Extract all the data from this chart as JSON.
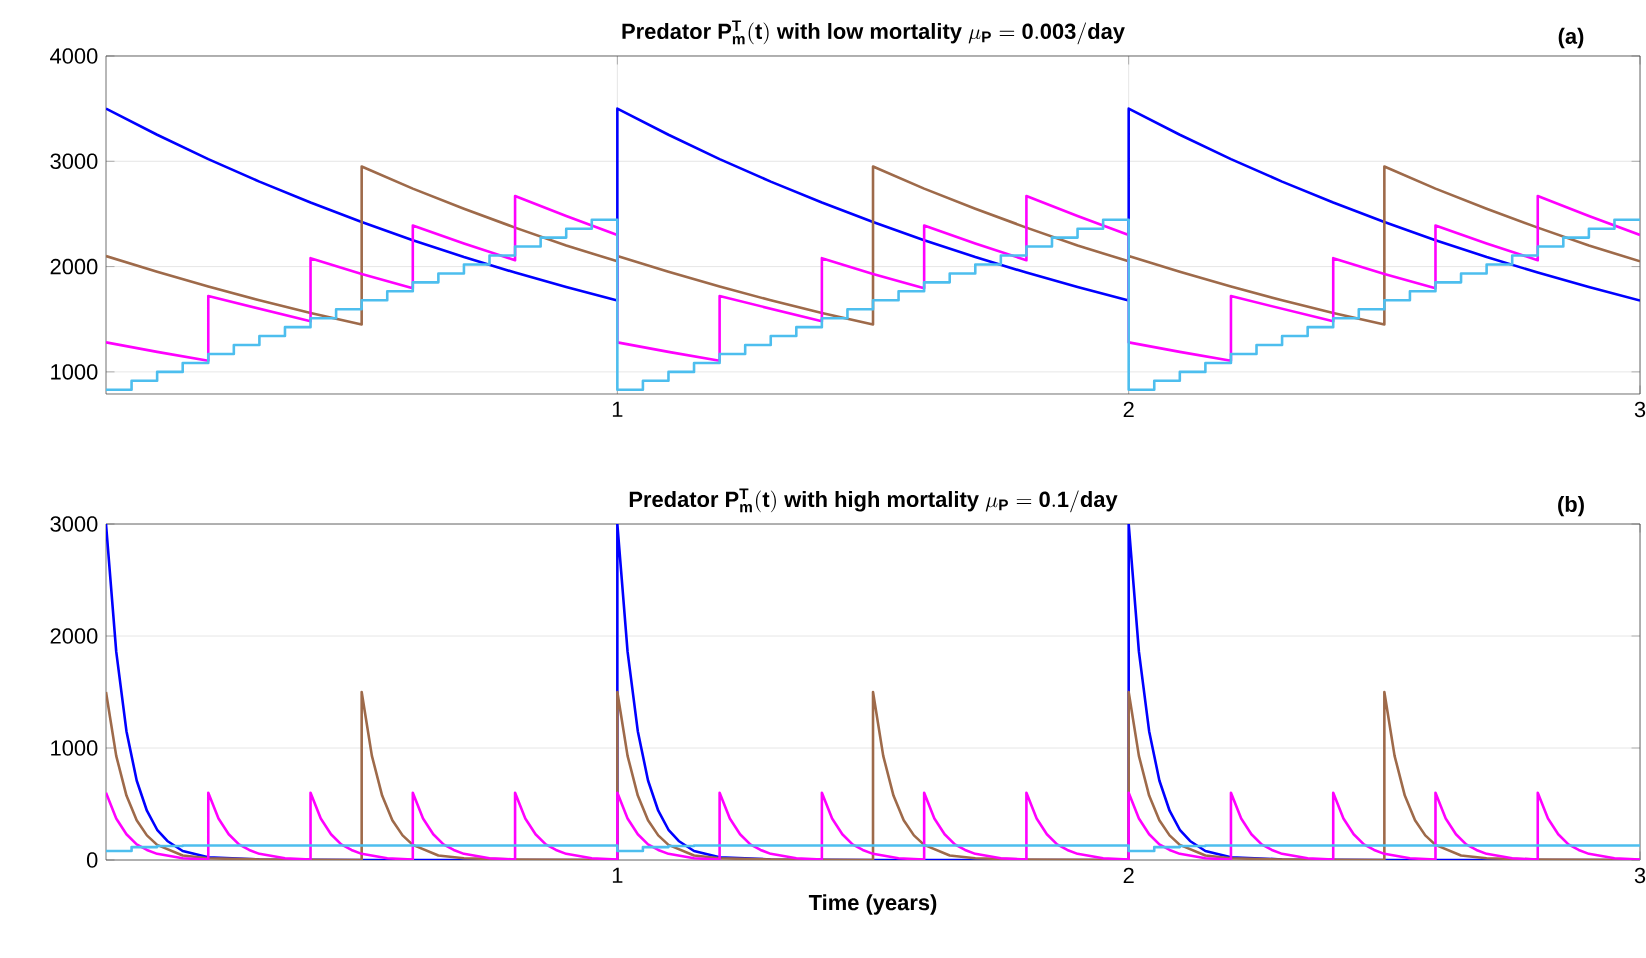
{
  "chart_data": [
    {
      "type": "line",
      "title": "\\textbf{Predator }\\mathbf{P_m^T(t)}\\textbf{ with low mortality }\\mu_{\\mathbf{P}}=\\mathbf{0.003/day}",
      "annotations": [
        "(a)"
      ],
      "xlim": [
        0,
        3
      ],
      "ylim": [
        790,
        4000
      ],
      "xticks": [
        1,
        2,
        3
      ],
      "yticks": [
        1000,
        2000,
        3000,
        4000
      ],
      "grid": true,
      "series": [
        {
          "color": "#0000ff",
          "x": [
            0,
            0.1,
            0.2,
            0.3,
            0.4,
            0.5,
            0.6,
            0.7,
            0.8,
            0.9,
            1,
            1,
            1.1,
            1.2,
            1.3,
            1.4,
            1.5,
            1.6,
            1.7,
            1.8,
            1.9,
            2,
            2,
            2.1,
            2.2,
            2.3,
            2.4,
            2.5,
            2.6,
            2.7,
            2.8,
            2.9,
            3
          ],
          "values": [
            3500,
            3252,
            3021,
            2807,
            2608,
            2423,
            2251,
            2091,
            1943,
            1805,
            1677,
            3500,
            3252,
            3021,
            2807,
            2608,
            2423,
            2251,
            2091,
            1943,
            1805,
            1677,
            3500,
            3252,
            3021,
            2807,
            2608,
            2423,
            2251,
            2091,
            1943,
            1805,
            1677
          ]
        },
        {
          "color": "#9e6a4a",
          "x": [
            0,
            0.1,
            0.2,
            0.3,
            0.4,
            0.5,
            0.5,
            0.6,
            0.7,
            0.8,
            0.9,
            1,
            1,
            1.1,
            1.2,
            1.3,
            1.4,
            1.5,
            1.5,
            1.6,
            1.7,
            1.8,
            1.9,
            2,
            2,
            2.1,
            2.2,
            2.3,
            2.4,
            2.5,
            2.5,
            2.6,
            2.7,
            2.8,
            2.9,
            3
          ],
          "values": [
            2100,
            1950,
            1810,
            1680,
            1560,
            1450,
            2950,
            2740,
            2550,
            2370,
            2200,
            2050,
            2100,
            1950,
            1810,
            1680,
            1560,
            1450,
            2950,
            2740,
            2550,
            2370,
            2200,
            2050,
            2100,
            1950,
            1810,
            1680,
            1560,
            1450,
            2950,
            2740,
            2550,
            2370,
            2200,
            2050
          ]
        },
        {
          "color": "#ff00ff",
          "x": [
            0,
            0.1,
            0.2,
            0.2,
            0.3,
            0.4,
            0.4,
            0.5,
            0.6,
            0.6,
            0.7,
            0.8,
            0.8,
            0.9,
            1,
            1,
            1.1,
            1.2,
            1.2,
            1.3,
            1.4,
            1.4,
            1.5,
            1.6,
            1.6,
            1.7,
            1.8,
            1.8,
            1.9,
            2,
            2,
            2.1,
            2.2,
            2.2,
            2.3,
            2.4,
            2.4,
            2.5,
            2.6,
            2.6,
            2.7,
            2.8,
            2.8,
            2.9,
            3
          ],
          "values": [
            1280,
            1190,
            1105,
            1720,
            1600,
            1480,
            2080,
            1930,
            1795,
            2390,
            2220,
            2060,
            2670,
            2480,
            2300,
            1280,
            1190,
            1105,
            1720,
            1600,
            1480,
            2080,
            1930,
            1795,
            2390,
            2220,
            2060,
            2670,
            2480,
            2300,
            1280,
            1190,
            1105,
            1720,
            1600,
            1480,
            2080,
            1930,
            1795,
            2390,
            2220,
            2060,
            2670,
            2480,
            2300
          ]
        },
        {
          "type": "step",
          "color": "#4dbeee",
          "x": [
            0,
            0.05,
            0.1,
            0.15,
            0.2,
            0.25,
            0.3,
            0.35,
            0.4,
            0.45,
            0.5,
            0.55,
            0.6,
            0.65,
            0.7,
            0.75,
            0.8,
            0.85,
            0.9,
            0.95,
            1,
            1.05,
            1.1,
            1.15,
            1.2,
            1.25,
            1.3,
            1.35,
            1.4,
            1.45,
            1.5,
            1.55,
            1.6,
            1.65,
            1.7,
            1.75,
            1.8,
            1.85,
            1.9,
            1.95,
            2,
            2.05,
            2.1,
            2.15,
            2.2,
            2.25,
            2.3,
            2.35,
            2.4,
            2.45,
            2.5,
            2.55,
            2.6,
            2.65,
            2.7,
            2.75,
            2.8,
            2.85,
            2.9,
            2.95,
            3
          ],
          "values": [
            830,
            915,
            1000,
            1085,
            1170,
            1255,
            1340,
            1425,
            1510,
            1595,
            1680,
            1765,
            1850,
            1935,
            2020,
            2105,
            2190,
            2275,
            2360,
            2445,
            830,
            915,
            1000,
            1085,
            1170,
            1255,
            1340,
            1425,
            1510,
            1595,
            1680,
            1765,
            1850,
            1935,
            2020,
            2105,
            2190,
            2275,
            2360,
            2445,
            830,
            915,
            1000,
            1085,
            1170,
            1255,
            1340,
            1425,
            1510,
            1595,
            1680,
            1765,
            1850,
            1935,
            2020,
            2105,
            2190,
            2275,
            2360,
            2445,
            2445
          ]
        }
      ]
    },
    {
      "type": "line",
      "title": "\\textbf{Predator }\\mathbf{P_m^T(t)}\\textbf{ with high mortality }\\mu_{\\mathbf{P}}=\\mathbf{0.1/day}",
      "annotations": [
        "(b)"
      ],
      "xlabel": "Time (years)",
      "xlim": [
        0,
        3
      ],
      "ylim": [
        0,
        3000
      ],
      "xticks": [
        1,
        2,
        3
      ],
      "yticks": [
        0,
        1000,
        2000,
        3000
      ],
      "grid": true,
      "series": [
        {
          "color": "#0000ff",
          "x": [
            0,
            0.02,
            0.04,
            0.06,
            0.08,
            0.1,
            0.12,
            0.15,
            0.2,
            0.3,
            0.5,
            1,
            1,
            1.02,
            1.04,
            1.06,
            1.08,
            1.1,
            1.12,
            1.15,
            1.2,
            1.3,
            1.5,
            2,
            2,
            2.02,
            2.04,
            2.06,
            2.08,
            2.1,
            2.12,
            2.15,
            2.2,
            2.3,
            2.5,
            3
          ],
          "values": [
            3000,
            1860,
            1150,
            710,
            440,
            270,
            170,
            80,
            25,
            5,
            0,
            0,
            3000,
            1860,
            1150,
            710,
            440,
            270,
            170,
            80,
            25,
            5,
            0,
            0,
            3000,
            1860,
            1150,
            710,
            440,
            270,
            170,
            80,
            25,
            5,
            0,
            0
          ]
        },
        {
          "color": "#9e6a4a",
          "x": [
            0,
            0.02,
            0.04,
            0.06,
            0.08,
            0.1,
            0.15,
            0.2,
            0.3,
            0.5,
            0.5,
            0.52,
            0.54,
            0.56,
            0.58,
            0.6,
            0.65,
            0.7,
            0.8,
            1,
            1,
            1.02,
            1.04,
            1.06,
            1.08,
            1.1,
            1.15,
            1.2,
            1.3,
            1.5,
            1.5,
            1.52,
            1.54,
            1.56,
            1.58,
            1.6,
            1.65,
            1.7,
            1.8,
            2,
            2,
            2.02,
            2.04,
            2.06,
            2.08,
            2.1,
            2.15,
            2.2,
            2.3,
            2.5,
            2.5,
            2.52,
            2.54,
            2.56,
            2.58,
            2.6,
            2.65,
            2.7,
            2.8,
            3
          ],
          "values": [
            1500,
            930,
            575,
            355,
            220,
            135,
            40,
            15,
            5,
            0,
            1500,
            930,
            575,
            355,
            220,
            135,
            40,
            15,
            5,
            0,
            1500,
            930,
            575,
            355,
            220,
            135,
            40,
            15,
            5,
            0,
            1500,
            930,
            575,
            355,
            220,
            135,
            40,
            15,
            5,
            0,
            1500,
            930,
            575,
            355,
            220,
            135,
            40,
            15,
            5,
            0,
            1500,
            930,
            575,
            355,
            220,
            135,
            40,
            15,
            5,
            0
          ]
        },
        {
          "color": "#ff00ff",
          "x": [
            0,
            0.02,
            0.04,
            0.06,
            0.08,
            0.1,
            0.15,
            0.2,
            0.2,
            0.22,
            0.24,
            0.26,
            0.28,
            0.3,
            0.35,
            0.4,
            0.4,
            0.42,
            0.44,
            0.46,
            0.48,
            0.5,
            0.55,
            0.6,
            0.6,
            0.62,
            0.64,
            0.66,
            0.68,
            0.7,
            0.75,
            0.8,
            0.8,
            0.82,
            0.84,
            0.86,
            0.88,
            0.9,
            0.95,
            1,
            1,
            1.02,
            1.04,
            1.06,
            1.08,
            1.1,
            1.15,
            1.2,
            1.2,
            1.22,
            1.24,
            1.26,
            1.28,
            1.3,
            1.35,
            1.4,
            1.4,
            1.42,
            1.44,
            1.46,
            1.48,
            1.5,
            1.55,
            1.6,
            1.6,
            1.62,
            1.64,
            1.66,
            1.68,
            1.7,
            1.75,
            1.8,
            1.8,
            1.82,
            1.84,
            1.86,
            1.88,
            1.9,
            1.95,
            2,
            2,
            2.02,
            2.04,
            2.06,
            2.08,
            2.1,
            2.15,
            2.2,
            2.2,
            2.22,
            2.24,
            2.26,
            2.28,
            2.3,
            2.35,
            2.4,
            2.4,
            2.42,
            2.44,
            2.46,
            2.48,
            2.5,
            2.55,
            2.6,
            2.6,
            2.62,
            2.64,
            2.66,
            2.68,
            2.7,
            2.75,
            2.8,
            2.8,
            2.82,
            2.84,
            2.86,
            2.88,
            2.9,
            2.95,
            3
          ],
          "values": [
            600,
            370,
            230,
            140,
            90,
            55,
            15,
            5,
            600,
            370,
            230,
            140,
            90,
            55,
            15,
            5,
            600,
            370,
            230,
            140,
            90,
            55,
            15,
            5,
            600,
            370,
            230,
            140,
            90,
            55,
            15,
            5,
            600,
            370,
            230,
            140,
            90,
            55,
            15,
            5,
            600,
            370,
            230,
            140,
            90,
            55,
            15,
            5,
            600,
            370,
            230,
            140,
            90,
            55,
            15,
            5,
            600,
            370,
            230,
            140,
            90,
            55,
            15,
            5,
            600,
            370,
            230,
            140,
            90,
            55,
            15,
            5,
            600,
            370,
            230,
            140,
            90,
            55,
            15,
            5,
            600,
            370,
            230,
            140,
            90,
            55,
            15,
            5,
            600,
            370,
            230,
            140,
            90,
            55,
            15,
            5,
            600,
            370,
            230,
            140,
            90,
            55,
            15,
            5,
            600,
            370,
            230,
            140,
            90,
            55,
            15,
            5,
            600,
            370,
            230,
            140,
            90,
            55,
            15,
            5
          ]
        },
        {
          "type": "step",
          "color": "#4dbeee",
          "x": [
            0,
            0.05,
            0.1,
            0.15,
            0.2,
            0.25,
            0.3,
            0.35,
            0.4,
            0.45,
            0.5,
            0.55,
            0.6,
            0.65,
            0.7,
            0.75,
            0.8,
            0.85,
            0.9,
            0.95,
            1,
            1.05,
            1.1,
            1.15,
            1.2,
            1.25,
            1.3,
            1.35,
            1.4,
            1.45,
            1.5,
            1.55,
            1.6,
            1.65,
            1.7,
            1.75,
            1.8,
            1.85,
            1.9,
            1.95,
            2,
            2.05,
            2.1,
            2.15,
            2.2,
            2.25,
            2.3,
            2.35,
            2.4,
            2.45,
            2.5,
            2.55,
            2.6,
            2.65,
            2.7,
            2.75,
            2.8,
            2.85,
            2.9,
            2.95,
            3
          ],
          "values": [
            80,
            115,
            125,
            130,
            130,
            130,
            130,
            130,
            130,
            130,
            130,
            130,
            130,
            130,
            130,
            130,
            130,
            130,
            130,
            130,
            80,
            115,
            125,
            130,
            130,
            130,
            130,
            130,
            130,
            130,
            130,
            130,
            130,
            130,
            130,
            130,
            130,
            130,
            130,
            130,
            80,
            115,
            125,
            130,
            130,
            130,
            130,
            130,
            130,
            130,
            130,
            130,
            130,
            130,
            130,
            130,
            130,
            130,
            130,
            130,
            130
          ]
        }
      ]
    }
  ]
}
